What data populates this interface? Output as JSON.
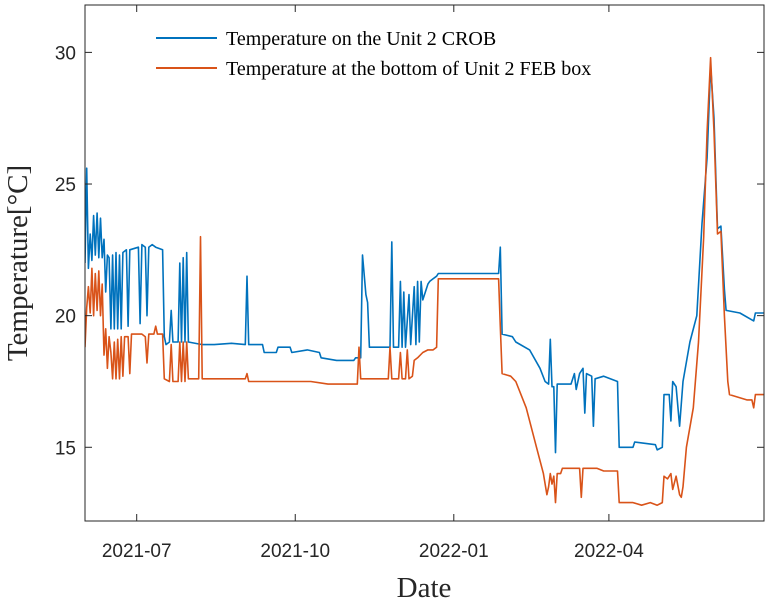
{
  "chart_data": {
    "type": "line",
    "xlabel": "Date",
    "ylabel": "Temperature[°C]",
    "xlim": [
      "2021-06-01",
      "2022-06-30"
    ],
    "ylim": [
      12.2,
      31.8
    ],
    "xticks": [
      {
        "value": "2021-07-01",
        "label": "2021-07"
      },
      {
        "value": "2021-10-01",
        "label": "2021-10"
      },
      {
        "value": "2022-01-01",
        "label": "2022-01"
      },
      {
        "value": "2022-04-01",
        "label": "2022-04"
      }
    ],
    "yticks": [
      15,
      20,
      25,
      30
    ],
    "grid": false,
    "legend_position": "top-right",
    "series": [
      {
        "name": "Temperature on the Unit 2 CROB",
        "color": "#0072BD",
        "points": [
          [
            "2021-06-01",
            22.0
          ],
          [
            "2021-06-02",
            25.6
          ],
          [
            "2021-06-03",
            21.8
          ],
          [
            "2021-06-04",
            23.1
          ],
          [
            "2021-06-05",
            22.1
          ],
          [
            "2021-06-06",
            23.8
          ],
          [
            "2021-06-07",
            22.3
          ],
          [
            "2021-06-08",
            23.9
          ],
          [
            "2021-06-09",
            22.2
          ],
          [
            "2021-06-10",
            23.7
          ],
          [
            "2021-06-11",
            22.2
          ],
          [
            "2021-06-12",
            22.9
          ],
          [
            "2021-06-13",
            20.9
          ],
          [
            "2021-06-14",
            22.3
          ],
          [
            "2021-06-15",
            22.2
          ],
          [
            "2021-06-16",
            19.5
          ],
          [
            "2021-06-17",
            22.3
          ],
          [
            "2021-06-18",
            19.5
          ],
          [
            "2021-06-19",
            22.4
          ],
          [
            "2021-06-20",
            19.5
          ],
          [
            "2021-06-21",
            22.3
          ],
          [
            "2021-06-22",
            19.5
          ],
          [
            "2021-06-23",
            22.4
          ],
          [
            "2021-06-25",
            22.5
          ],
          [
            "2021-06-26",
            19.6
          ],
          [
            "2021-06-27",
            22.5
          ],
          [
            "2021-07-02",
            22.6
          ],
          [
            "2021-07-03",
            19.7
          ],
          [
            "2021-07-04",
            22.7
          ],
          [
            "2021-07-06",
            22.6
          ],
          [
            "2021-07-07",
            20.0
          ],
          [
            "2021-07-08",
            22.6
          ],
          [
            "2021-07-10",
            22.7
          ],
          [
            "2021-07-12",
            22.6
          ],
          [
            "2021-07-16",
            22.5
          ],
          [
            "2021-07-17",
            19.2
          ],
          [
            "2021-07-18",
            18.9
          ],
          [
            "2021-07-20",
            19.0
          ],
          [
            "2021-07-21",
            20.2
          ],
          [
            "2021-07-22",
            19.0
          ],
          [
            "2021-07-25",
            19.0
          ],
          [
            "2021-07-26",
            22.0
          ],
          [
            "2021-07-27",
            19.0
          ],
          [
            "2021-07-28",
            22.2
          ],
          [
            "2021-07-29",
            19.0
          ],
          [
            "2021-07-30",
            22.4
          ],
          [
            "2021-07-31",
            19.0
          ],
          [
            "2021-08-08",
            18.9
          ],
          [
            "2021-08-15",
            18.9
          ],
          [
            "2021-08-25",
            18.95
          ],
          [
            "2021-09-02",
            18.9
          ],
          [
            "2021-09-03",
            21.5
          ],
          [
            "2021-09-04",
            18.9
          ],
          [
            "2021-09-12",
            18.9
          ],
          [
            "2021-09-13",
            18.6
          ],
          [
            "2021-09-20",
            18.6
          ],
          [
            "2021-09-21",
            18.8
          ],
          [
            "2021-09-28",
            18.8
          ],
          [
            "2021-09-29",
            18.6
          ],
          [
            "2021-10-08",
            18.7
          ],
          [
            "2021-10-15",
            18.6
          ],
          [
            "2021-10-16",
            18.4
          ],
          [
            "2021-10-25",
            18.3
          ],
          [
            "2021-11-04",
            18.3
          ],
          [
            "2021-11-05",
            18.4
          ],
          [
            "2021-11-08",
            18.4
          ],
          [
            "2021-11-09",
            22.3
          ],
          [
            "2021-11-11",
            20.8
          ],
          [
            "2021-11-12",
            20.5
          ],
          [
            "2021-11-13",
            18.8
          ],
          [
            "2021-11-25",
            18.8
          ],
          [
            "2021-11-26",
            22.8
          ],
          [
            "2021-11-27",
            18.8
          ],
          [
            "2021-11-30",
            18.8
          ],
          [
            "2021-12-01",
            21.3
          ],
          [
            "2021-12-02",
            18.8
          ],
          [
            "2021-12-03",
            20.9
          ],
          [
            "2021-12-04",
            18.8
          ],
          [
            "2021-12-06",
            20.8
          ],
          [
            "2021-12-07",
            18.9
          ],
          [
            "2021-12-09",
            21.1
          ],
          [
            "2021-12-10",
            18.9
          ],
          [
            "2021-12-11",
            21.3
          ],
          [
            "2021-12-12",
            19.0
          ],
          [
            "2021-12-13",
            21.3
          ],
          [
            "2021-12-14",
            20.6
          ],
          [
            "2021-12-17",
            21.2
          ],
          [
            "2021-12-18",
            21.3
          ],
          [
            "2021-12-20",
            21.4
          ],
          [
            "2021-12-22",
            21.5
          ],
          [
            "2021-12-23",
            21.6
          ],
          [
            "2022-01-27",
            21.6
          ],
          [
            "2022-01-28",
            22.6
          ],
          [
            "2022-01-29",
            19.3
          ],
          [
            "2022-02-04",
            19.2
          ],
          [
            "2022-02-06",
            19.0
          ],
          [
            "2022-02-14",
            18.7
          ],
          [
            "2022-02-20",
            18.0
          ],
          [
            "2022-02-23",
            17.5
          ],
          [
            "2022-02-25",
            17.4
          ],
          [
            "2022-02-26",
            19.1
          ],
          [
            "2022-02-27",
            17.3
          ],
          [
            "2022-02-28",
            17.3
          ],
          [
            "2022-03-01",
            14.8
          ],
          [
            "2022-03-02",
            17.4
          ],
          [
            "2022-03-10",
            17.4
          ],
          [
            "2022-03-12",
            17.8
          ],
          [
            "2022-03-13",
            17.2
          ],
          [
            "2022-03-15",
            17.8
          ],
          [
            "2022-03-17",
            18.0
          ],
          [
            "2022-03-18",
            16.3
          ],
          [
            "2022-03-19",
            17.8
          ],
          [
            "2022-03-22",
            17.7
          ],
          [
            "2022-03-23",
            15.8
          ],
          [
            "2022-03-24",
            17.6
          ],
          [
            "2022-03-29",
            17.7
          ],
          [
            "2022-04-06",
            17.5
          ],
          [
            "2022-04-07",
            15.0
          ],
          [
            "2022-04-15",
            15.0
          ],
          [
            "2022-04-16",
            15.2
          ],
          [
            "2022-04-28",
            15.1
          ],
          [
            "2022-04-29",
            14.9
          ],
          [
            "2022-05-02",
            15.0
          ],
          [
            "2022-05-03",
            17.0
          ],
          [
            "2022-05-06",
            17.0
          ],
          [
            "2022-05-07",
            16.0
          ],
          [
            "2022-05-08",
            17.5
          ],
          [
            "2022-05-10",
            17.3
          ],
          [
            "2022-05-12",
            15.8
          ],
          [
            "2022-05-14",
            17.5
          ],
          [
            "2022-05-18",
            19.0
          ],
          [
            "2022-05-22",
            20.0
          ],
          [
            "2022-05-25",
            23.5
          ],
          [
            "2022-05-28",
            26.0
          ],
          [
            "2022-05-30",
            29.5
          ],
          [
            "2022-06-01",
            27.5
          ],
          [
            "2022-06-03",
            23.3
          ],
          [
            "2022-06-05",
            23.4
          ],
          [
            "2022-06-07",
            21.0
          ],
          [
            "2022-06-08",
            20.2
          ],
          [
            "2022-06-16",
            20.1
          ],
          [
            "2022-06-24",
            19.8
          ],
          [
            "2022-06-25",
            20.1
          ],
          [
            "2022-06-30",
            20.1
          ]
        ]
      },
      {
        "name": "Temperature at the bottom of Unit 2 FEB box",
        "color": "#D95319",
        "points": [
          [
            "2021-06-01",
            18.8
          ],
          [
            "2021-06-02",
            20.3
          ],
          [
            "2021-06-03",
            21.1
          ],
          [
            "2021-06-04",
            20.1
          ],
          [
            "2021-06-05",
            21.8
          ],
          [
            "2021-06-06",
            20.0
          ],
          [
            "2021-06-07",
            21.6
          ],
          [
            "2021-06-08",
            20.2
          ],
          [
            "2021-06-09",
            21.7
          ],
          [
            "2021-06-10",
            20.0
          ],
          [
            "2021-06-11",
            21.2
          ],
          [
            "2021-06-12",
            18.5
          ],
          [
            "2021-06-13",
            19.5
          ],
          [
            "2021-06-14",
            18.0
          ],
          [
            "2021-06-15",
            19.2
          ],
          [
            "2021-06-16",
            18.6
          ],
          [
            "2021-06-17",
            17.6
          ],
          [
            "2021-06-18",
            19.0
          ],
          [
            "2021-06-19",
            17.6
          ],
          [
            "2021-06-20",
            19.1
          ],
          [
            "2021-06-21",
            17.6
          ],
          [
            "2021-06-22",
            19.2
          ],
          [
            "2021-06-23",
            17.7
          ],
          [
            "2021-06-24",
            19.2
          ],
          [
            "2021-06-26",
            19.2
          ],
          [
            "2021-06-27",
            17.8
          ],
          [
            "2021-06-28",
            19.3
          ],
          [
            "2021-07-04",
            19.3
          ],
          [
            "2021-07-06",
            19.2
          ],
          [
            "2021-07-07",
            18.2
          ],
          [
            "2021-07-08",
            19.3
          ],
          [
            "2021-07-11",
            19.3
          ],
          [
            "2021-07-12",
            19.6
          ],
          [
            "2021-07-13",
            19.3
          ],
          [
            "2021-07-16",
            19.3
          ],
          [
            "2021-07-17",
            17.6
          ],
          [
            "2021-07-20",
            17.5
          ],
          [
            "2021-07-21",
            18.9
          ],
          [
            "2021-07-22",
            17.5
          ],
          [
            "2021-07-25",
            17.5
          ],
          [
            "2021-07-26",
            19.0
          ],
          [
            "2021-07-27",
            17.5
          ],
          [
            "2021-07-28",
            19.0
          ],
          [
            "2021-07-29",
            17.5
          ],
          [
            "2021-07-30",
            19.0
          ],
          [
            "2021-07-31",
            17.6
          ],
          [
            "2021-08-06",
            17.6
          ],
          [
            "2021-08-07",
            23.0
          ],
          [
            "2021-08-08",
            17.6
          ],
          [
            "2021-08-20",
            17.6
          ],
          [
            "2021-09-02",
            17.6
          ],
          [
            "2021-09-03",
            17.8
          ],
          [
            "2021-09-04",
            17.5
          ],
          [
            "2021-09-20",
            17.5
          ],
          [
            "2021-10-10",
            17.5
          ],
          [
            "2021-10-20",
            17.4
          ],
          [
            "2021-11-04",
            17.4
          ],
          [
            "2021-11-06",
            17.4
          ],
          [
            "2021-11-07",
            18.8
          ],
          [
            "2021-11-08",
            17.6
          ],
          [
            "2021-11-24",
            17.6
          ],
          [
            "2021-11-25",
            18.8
          ],
          [
            "2021-11-26",
            17.6
          ],
          [
            "2021-11-30",
            17.6
          ],
          [
            "2021-12-01",
            18.6
          ],
          [
            "2021-12-02",
            17.6
          ],
          [
            "2021-12-04",
            17.6
          ],
          [
            "2021-12-05",
            18.7
          ],
          [
            "2021-12-06",
            17.6
          ],
          [
            "2021-12-08",
            17.7
          ],
          [
            "2021-12-09",
            18.3
          ],
          [
            "2021-12-11",
            18.4
          ],
          [
            "2021-12-14",
            18.6
          ],
          [
            "2021-12-17",
            18.7
          ],
          [
            "2021-12-20",
            18.7
          ],
          [
            "2021-12-22",
            18.8
          ],
          [
            "2021-12-23",
            21.4
          ],
          [
            "2022-01-27",
            21.4
          ],
          [
            "2022-01-28",
            19.6
          ],
          [
            "2022-01-29",
            17.8
          ],
          [
            "2022-02-03",
            17.7
          ],
          [
            "2022-02-06",
            17.5
          ],
          [
            "2022-02-12",
            16.5
          ],
          [
            "2022-02-18",
            15.0
          ],
          [
            "2022-02-22",
            14.0
          ],
          [
            "2022-02-24",
            13.2
          ],
          [
            "2022-02-25",
            13.5
          ],
          [
            "2022-02-26",
            14.0
          ],
          [
            "2022-02-27",
            13.6
          ],
          [
            "2022-02-28",
            13.9
          ],
          [
            "2022-03-01",
            12.9
          ],
          [
            "2022-03-02",
            14.0
          ],
          [
            "2022-03-04",
            14.0
          ],
          [
            "2022-03-05",
            14.2
          ],
          [
            "2022-03-15",
            14.2
          ],
          [
            "2022-03-16",
            13.1
          ],
          [
            "2022-03-17",
            14.2
          ],
          [
            "2022-03-25",
            14.2
          ],
          [
            "2022-03-29",
            14.1
          ],
          [
            "2022-04-06",
            14.1
          ],
          [
            "2022-04-07",
            12.9
          ],
          [
            "2022-04-15",
            12.9
          ],
          [
            "2022-04-20",
            12.8
          ],
          [
            "2022-04-25",
            12.9
          ],
          [
            "2022-04-29",
            12.8
          ],
          [
            "2022-05-02",
            12.9
          ],
          [
            "2022-05-03",
            13.9
          ],
          [
            "2022-05-05",
            13.8
          ],
          [
            "2022-05-07",
            14.0
          ],
          [
            "2022-05-08",
            13.4
          ],
          [
            "2022-05-10",
            13.9
          ],
          [
            "2022-05-12",
            13.2
          ],
          [
            "2022-05-13",
            13.1
          ],
          [
            "2022-05-14",
            13.5
          ],
          [
            "2022-05-16",
            15.0
          ],
          [
            "2022-05-20",
            16.5
          ],
          [
            "2022-05-23",
            19.0
          ],
          [
            "2022-05-26",
            23.0
          ],
          [
            "2022-05-28",
            27.0
          ],
          [
            "2022-05-30",
            29.8
          ],
          [
            "2022-06-01",
            27.0
          ],
          [
            "2022-06-03",
            23.1
          ],
          [
            "2022-06-05",
            23.2
          ],
          [
            "2022-06-07",
            20.0
          ],
          [
            "2022-06-09",
            17.5
          ],
          [
            "2022-06-10",
            17.0
          ],
          [
            "2022-06-20",
            16.8
          ],
          [
            "2022-06-23",
            16.8
          ],
          [
            "2022-06-24",
            16.5
          ],
          [
            "2022-06-25",
            17.0
          ],
          [
            "2022-06-30",
            17.0
          ]
        ]
      }
    ]
  }
}
